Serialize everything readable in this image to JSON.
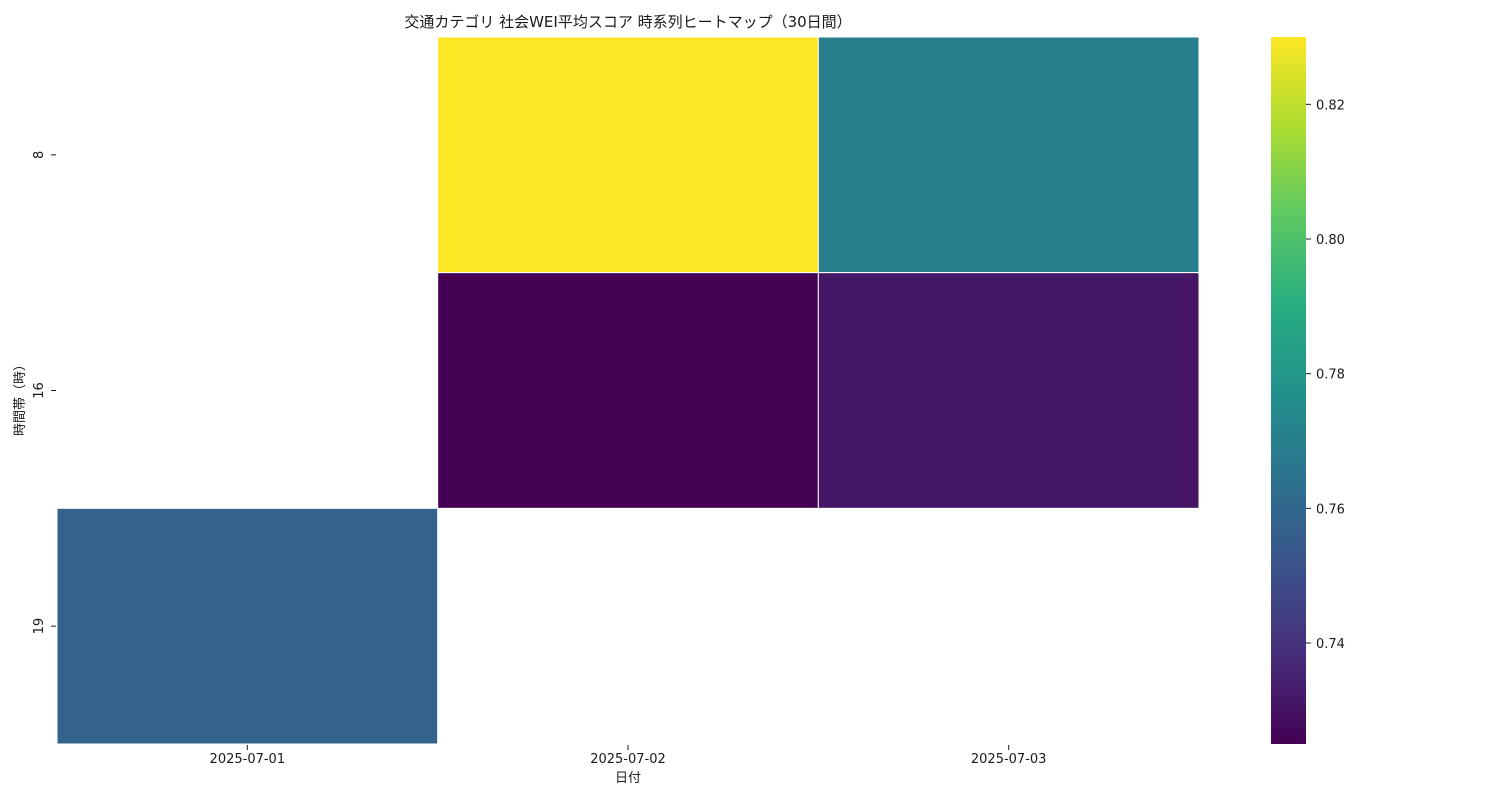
{
  "chart_data": {
    "type": "heatmap",
    "title": "交通カテゴリ 社会WEI平均スコア 時系列ヒートマップ（30日間）",
    "xlabel": "日付",
    "ylabel": "時間帯（時）",
    "x_categories": [
      "2025-07-01",
      "2025-07-02",
      "2025-07-03"
    ],
    "y_categories": [
      "8",
      "16",
      "19"
    ],
    "values": [
      [
        null,
        0.83,
        0.77
      ],
      [
        null,
        0.725,
        0.731
      ],
      [
        0.758,
        null,
        null
      ]
    ],
    "colormap": "viridis",
    "colorbar": {
      "vmin": 0.725,
      "vmax": 0.83,
      "ticks": [
        0.74,
        0.76,
        0.78,
        0.8,
        0.82
      ],
      "tick_labels": [
        "0.74",
        "0.76",
        "0.78",
        "0.80",
        "0.82"
      ]
    },
    "missing_color": "#ffffff",
    "cell_border_color": "#ffffff",
    "legend": "colorbar-right"
  }
}
